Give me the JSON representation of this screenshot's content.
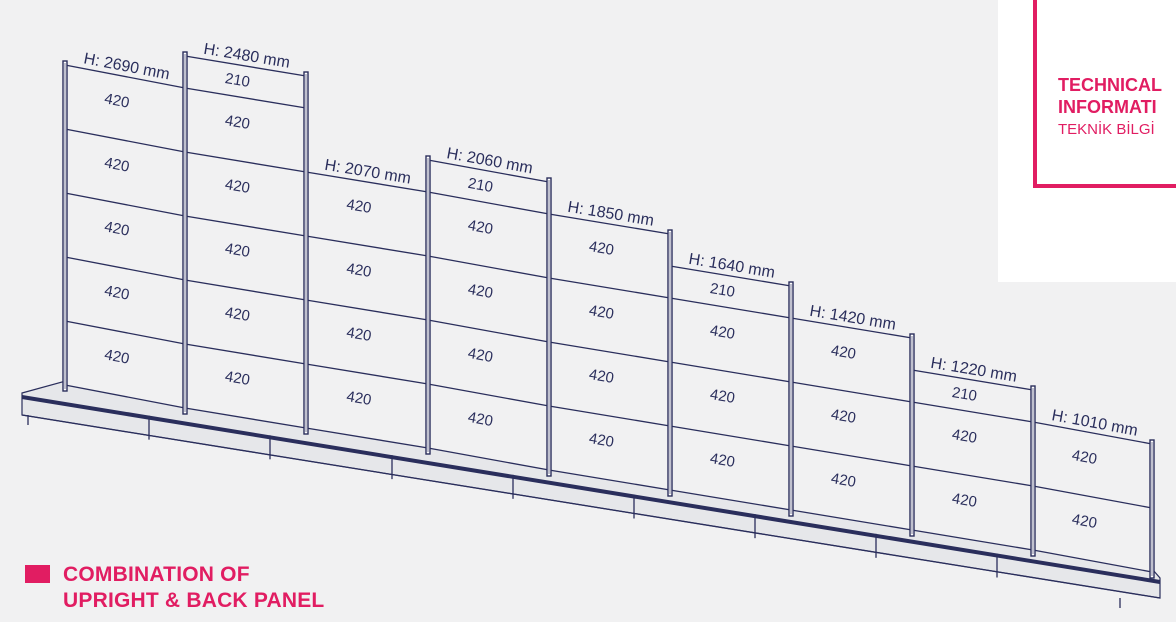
{
  "info": {
    "title": "TECHNICAL\nINFORMATI",
    "subtitle": "TEKNİK BİLGİ"
  },
  "caption": {
    "text": "COMBINATION OF\nUPRIGHT & BACK PANEL"
  },
  "colors": {
    "accent": "#e11d62",
    "line": "#2a2e5c",
    "background": "#f1f1f2"
  },
  "modules": [
    {
      "height_label": "H: 2690 mm",
      "segments": [
        "420",
        "420",
        "420",
        "420",
        "420"
      ]
    },
    {
      "height_label": "H: 2480 mm",
      "segments": [
        "210",
        "420",
        "420",
        "420",
        "420",
        "420"
      ]
    },
    {
      "height_label": "H: 2070 mm",
      "segments": [
        "420",
        "420",
        "420",
        "420"
      ]
    },
    {
      "height_label": "H: 2060 mm",
      "segments": [
        "210",
        "420",
        "420",
        "420",
        "420"
      ]
    },
    {
      "height_label": "H: 1850 mm",
      "segments": [
        "420",
        "420",
        "420",
        "420"
      ]
    },
    {
      "height_label": "H: 1640 mm",
      "segments": [
        "210",
        "420",
        "420",
        "420"
      ]
    },
    {
      "height_label": "H: 1420 mm",
      "segments": [
        "420",
        "420",
        "420"
      ]
    },
    {
      "height_label": "H: 1220 mm",
      "segments": [
        "210",
        "420",
        "420"
      ]
    },
    {
      "height_label": "H: 1010 mm",
      "segments": [
        "420",
        "420"
      ]
    }
  ]
}
